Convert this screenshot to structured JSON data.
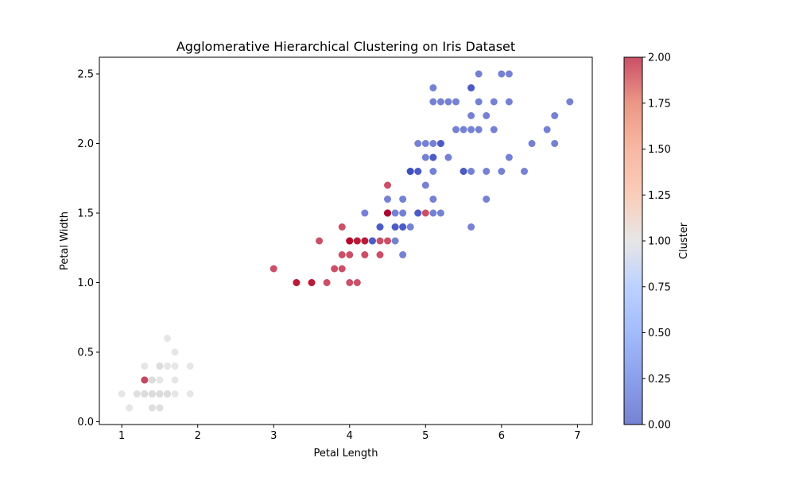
{
  "chart_data": {
    "type": "scatter",
    "title": "Agglomerative Hierarchical Clustering on Iris Dataset",
    "xlabel": "Petal Length",
    "ylabel": "Petal Width",
    "xlim": [
      0.705,
      7.195
    ],
    "ylim": [
      -0.02,
      2.62
    ],
    "xticks": [
      1,
      2,
      3,
      4,
      5,
      6,
      7
    ],
    "xtick_labels": [
      "1",
      "2",
      "3",
      "4",
      "5",
      "6",
      "7"
    ],
    "yticks": [
      0.0,
      0.5,
      1.0,
      1.5,
      2.0,
      2.5
    ],
    "ytick_labels": [
      "0.0",
      "0.5",
      "1.0",
      "1.5",
      "2.0",
      "2.5"
    ],
    "grid": false,
    "colormap": "coolwarm",
    "colorbar": {
      "label": "Cluster",
      "range": [
        0,
        2
      ],
      "ticks": [
        0.0,
        0.25,
        0.5,
        0.75,
        1.0,
        1.25,
        1.5,
        1.75,
        2.0
      ],
      "tick_labels": [
        "0.00",
        "0.25",
        "0.50",
        "0.75",
        "1.00",
        "1.25",
        "1.50",
        "1.75",
        "2.00"
      ]
    },
    "alpha": 0.7,
    "points": [
      [
        1.4,
        0.2,
        1
      ],
      [
        1.4,
        0.2,
        1
      ],
      [
        1.3,
        0.2,
        1
      ],
      [
        1.5,
        0.2,
        1
      ],
      [
        1.4,
        0.2,
        1
      ],
      [
        1.7,
        0.4,
        1
      ],
      [
        1.4,
        0.3,
        1
      ],
      [
        1.5,
        0.2,
        1
      ],
      [
        1.4,
        0.2,
        1
      ],
      [
        1.5,
        0.1,
        1
      ],
      [
        1.5,
        0.2,
        1
      ],
      [
        1.6,
        0.2,
        1
      ],
      [
        1.4,
        0.1,
        1
      ],
      [
        1.1,
        0.1,
        1
      ],
      [
        1.2,
        0.2,
        1
      ],
      [
        1.5,
        0.4,
        1
      ],
      [
        1.3,
        0.4,
        1
      ],
      [
        1.4,
        0.3,
        1
      ],
      [
        1.7,
        0.3,
        1
      ],
      [
        1.5,
        0.3,
        1
      ],
      [
        1.7,
        0.2,
        1
      ],
      [
        1.5,
        0.4,
        1
      ],
      [
        1.0,
        0.2,
        1
      ],
      [
        1.7,
        0.5,
        1
      ],
      [
        1.9,
        0.2,
        1
      ],
      [
        1.6,
        0.2,
        1
      ],
      [
        1.6,
        0.4,
        1
      ],
      [
        1.5,
        0.2,
        1
      ],
      [
        1.4,
        0.2,
        1
      ],
      [
        1.6,
        0.2,
        1
      ],
      [
        1.6,
        0.2,
        1
      ],
      [
        1.5,
        0.4,
        1
      ],
      [
        1.5,
        0.1,
        1
      ],
      [
        1.4,
        0.2,
        1
      ],
      [
        1.5,
        0.2,
        1
      ],
      [
        1.2,
        0.2,
        1
      ],
      [
        1.3,
        0.2,
        1
      ],
      [
        1.4,
        0.1,
        1
      ],
      [
        1.3,
        0.2,
        1
      ],
      [
        1.5,
        0.2,
        1
      ],
      [
        1.3,
        0.3,
        1
      ],
      [
        1.3,
        0.3,
        2
      ],
      [
        1.3,
        0.2,
        1
      ],
      [
        1.6,
        0.6,
        1
      ],
      [
        1.9,
        0.4,
        1
      ],
      [
        1.4,
        0.3,
        1
      ],
      [
        1.6,
        0.2,
        1
      ],
      [
        1.4,
        0.2,
        1
      ],
      [
        1.5,
        0.2,
        1
      ],
      [
        1.4,
        0.2,
        1
      ],
      [
        4.7,
        1.4,
        0
      ],
      [
        4.5,
        1.5,
        2
      ],
      [
        4.9,
        1.5,
        0
      ],
      [
        4.0,
        1.3,
        2
      ],
      [
        4.6,
        1.5,
        0
      ],
      [
        4.5,
        1.3,
        2
      ],
      [
        4.7,
        1.6,
        0
      ],
      [
        3.3,
        1.0,
        2
      ],
      [
        4.6,
        1.3,
        0
      ],
      [
        3.9,
        1.4,
        2
      ],
      [
        3.5,
        1.0,
        2
      ],
      [
        4.2,
        1.5,
        0
      ],
      [
        4.0,
        1.0,
        2
      ],
      [
        4.7,
        1.4,
        0
      ],
      [
        3.6,
        1.3,
        2
      ],
      [
        4.4,
        1.4,
        0
      ],
      [
        4.5,
        1.5,
        2
      ],
      [
        4.1,
        1.0,
        2
      ],
      [
        4.5,
        1.5,
        0
      ],
      [
        3.9,
        1.1,
        2
      ],
      [
        4.8,
        1.8,
        0
      ],
      [
        4.0,
        1.3,
        2
      ],
      [
        4.9,
        1.5,
        0
      ],
      [
        4.7,
        1.2,
        0
      ],
      [
        4.3,
        1.3,
        0
      ],
      [
        4.4,
        1.4,
        0
      ],
      [
        4.8,
        1.4,
        0
      ],
      [
        5.0,
        1.7,
        0
      ],
      [
        4.5,
        1.5,
        2
      ],
      [
        3.5,
        1.0,
        2
      ],
      [
        3.8,
        1.1,
        2
      ],
      [
        3.7,
        1.0,
        2
      ],
      [
        3.9,
        1.2,
        2
      ],
      [
        5.1,
        1.6,
        0
      ],
      [
        4.5,
        1.5,
        2
      ],
      [
        4.5,
        1.6,
        0
      ],
      [
        4.7,
        1.5,
        0
      ],
      [
        4.4,
        1.3,
        2
      ],
      [
        4.1,
        1.3,
        2
      ],
      [
        4.0,
        1.3,
        2
      ],
      [
        4.4,
        1.2,
        2
      ],
      [
        4.6,
        1.4,
        0
      ],
      [
        4.0,
        1.2,
        2
      ],
      [
        3.3,
        1.0,
        2
      ],
      [
        4.2,
        1.3,
        2
      ],
      [
        4.2,
        1.2,
        2
      ],
      [
        4.2,
        1.3,
        2
      ],
      [
        4.3,
        1.3,
        0
      ],
      [
        3.0,
        1.1,
        2
      ],
      [
        4.1,
        1.3,
        2
      ],
      [
        6.0,
        2.5,
        0
      ],
      [
        5.1,
        1.9,
        0
      ],
      [
        5.9,
        2.1,
        0
      ],
      [
        5.6,
        1.8,
        0
      ],
      [
        5.8,
        2.2,
        0
      ],
      [
        6.6,
        2.1,
        0
      ],
      [
        4.5,
        1.7,
        2
      ],
      [
        6.3,
        1.8,
        0
      ],
      [
        5.8,
        1.8,
        0
      ],
      [
        6.1,
        2.5,
        0
      ],
      [
        5.1,
        2.0,
        0
      ],
      [
        5.3,
        1.9,
        0
      ],
      [
        5.5,
        2.1,
        0
      ],
      [
        5.0,
        2.0,
        0
      ],
      [
        5.1,
        2.4,
        0
      ],
      [
        5.3,
        2.3,
        0
      ],
      [
        5.5,
        1.8,
        0
      ],
      [
        6.7,
        2.2,
        0
      ],
      [
        6.9,
        2.3,
        0
      ],
      [
        5.0,
        1.5,
        2
      ],
      [
        5.7,
        2.3,
        0
      ],
      [
        4.9,
        2.0,
        0
      ],
      [
        6.7,
        2.0,
        0
      ],
      [
        4.9,
        1.8,
        0
      ],
      [
        5.7,
        2.1,
        0
      ],
      [
        6.0,
        1.8,
        0
      ],
      [
        4.8,
        1.8,
        0
      ],
      [
        4.9,
        1.8,
        0
      ],
      [
        5.6,
        2.1,
        0
      ],
      [
        5.8,
        1.6,
        0
      ],
      [
        6.1,
        1.9,
        0
      ],
      [
        6.4,
        2.0,
        0
      ],
      [
        5.6,
        2.2,
        0
      ],
      [
        5.1,
        1.5,
        0
      ],
      [
        5.6,
        1.4,
        0
      ],
      [
        6.1,
        2.3,
        0
      ],
      [
        5.6,
        2.4,
        0
      ],
      [
        5.5,
        1.8,
        0
      ],
      [
        4.8,
        1.8,
        0
      ],
      [
        5.4,
        2.1,
        0
      ],
      [
        5.6,
        2.4,
        0
      ],
      [
        5.1,
        2.3,
        0
      ],
      [
        5.1,
        1.9,
        0
      ],
      [
        5.9,
        2.3,
        0
      ],
      [
        5.7,
        2.5,
        0
      ],
      [
        5.2,
        2.3,
        0
      ],
      [
        5.0,
        1.9,
        0
      ],
      [
        5.2,
        2.0,
        0
      ],
      [
        5.4,
        2.3,
        0
      ],
      [
        5.1,
        1.8,
        0
      ],
      [
        5.2,
        1.5,
        0
      ],
      [
        4.6,
        1.4,
        0
      ],
      [
        5.2,
        2.0,
        0
      ]
    ]
  }
}
